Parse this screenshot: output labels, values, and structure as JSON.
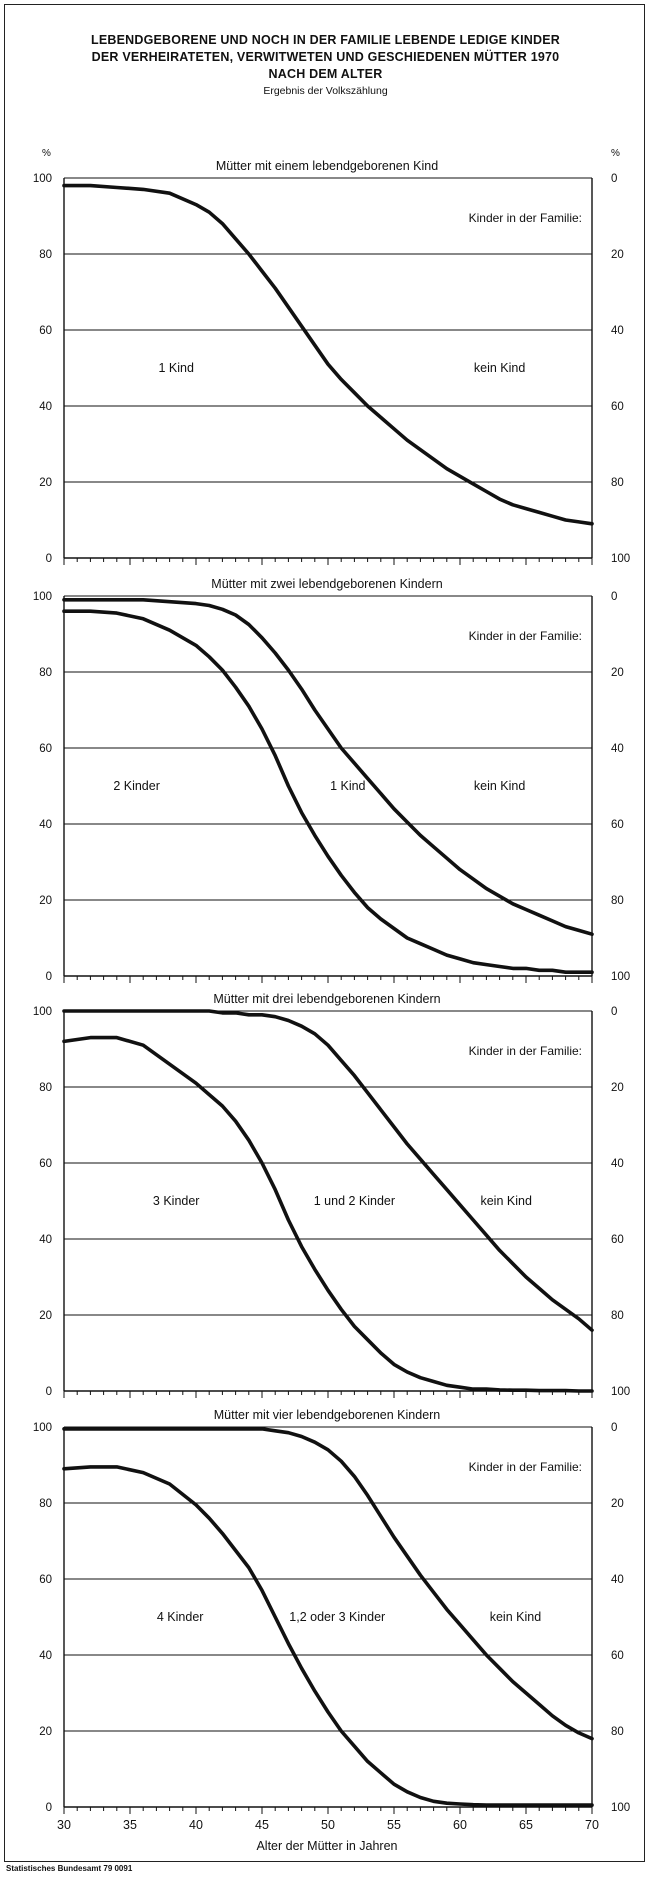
{
  "header": {
    "title_line1": "LEBENDGEBORENE UND NOCH IN DER FAMILIE LEBENDE LEDIGE KINDER",
    "title_line2": "DER VERHEIRATETEN, VERWITWETEN UND GESCHIEDENEN MÜTTER 1970",
    "title_line3": "NACH DEM ALTER",
    "subtitle": "Ergebnis der Volkszählung"
  },
  "source": "Statistisches Bundesamt 79 0091",
  "chart_data": {
    "type": "line",
    "x_axis": {
      "label": "Alter der Mütter in Jahren",
      "range": [
        30,
        70
      ],
      "ticks": [
        30,
        35,
        40,
        45,
        50,
        55,
        60,
        65,
        70
      ],
      "minor_step": 1
    },
    "y_left": {
      "unit": "%",
      "range": [
        0,
        100
      ],
      "ticks": [
        0,
        20,
        40,
        60,
        80,
        100
      ]
    },
    "y_right": {
      "unit": "%",
      "range": [
        100,
        0
      ],
      "ticks": [
        0,
        20,
        40,
        60,
        80,
        100
      ]
    },
    "grid": "horizontal",
    "panels": [
      {
        "title": "Mütter mit einem lebendgeborenen Kind",
        "legend_title": "Kinder in der Familie:",
        "region_labels": [
          {
            "text": "1 Kind",
            "x": 38.5,
            "y": 50
          },
          {
            "text": "kein Kind",
            "x": 63,
            "y": 50
          }
        ],
        "x": [
          30,
          32,
          34,
          36,
          38,
          40,
          41,
          42,
          43,
          44,
          45,
          46,
          47,
          48,
          49,
          50,
          51,
          52,
          53,
          54,
          55,
          56,
          57,
          58,
          59,
          60,
          61,
          62,
          63,
          64,
          65,
          66,
          67,
          68,
          69,
          70
        ],
        "series": [
          {
            "values": [
              98,
              98,
              97.5,
              97,
              96,
              93,
              91,
              88,
              84,
              80,
              75.5,
              71,
              66,
              61,
              56,
              51,
              47,
              43.5,
              40,
              37,
              34,
              31,
              28.5,
              26,
              23.5,
              21.5,
              19.5,
              17.5,
              15.5,
              14,
              13,
              12,
              11,
              10,
              9.5,
              9
            ]
          }
        ]
      },
      {
        "title": "Mütter mit zwei lebendgeborenen Kindern",
        "legend_title": "Kinder in der Familie:",
        "region_labels": [
          {
            "text": "2 Kinder",
            "x": 35.5,
            "y": 50
          },
          {
            "text": "1 Kind",
            "x": 51.5,
            "y": 50
          },
          {
            "text": "kein Kind",
            "x": 63,
            "y": 50
          }
        ],
        "x": [
          30,
          32,
          34,
          36,
          38,
          40,
          41,
          42,
          43,
          44,
          45,
          46,
          47,
          48,
          49,
          50,
          51,
          52,
          53,
          54,
          55,
          56,
          57,
          58,
          59,
          60,
          61,
          62,
          63,
          64,
          65,
          66,
          67,
          68,
          69,
          70
        ],
        "series": [
          {
            "values": [
              96,
              96,
              95.5,
              94,
              91,
              87,
              84,
              80.5,
              76,
              71,
              65,
              58,
              50,
              43,
              37,
              31.5,
              26.5,
              22,
              18,
              15,
              12.5,
              10,
              8.5,
              7,
              5.5,
              4.5,
              3.5,
              3,
              2.5,
              2,
              2,
              1.5,
              1.5,
              1,
              1,
              1
            ]
          },
          {
            "values": [
              99,
              99,
              99,
              99,
              98.5,
              98,
              97.5,
              96.5,
              95,
              92.5,
              89,
              85,
              80.5,
              75.5,
              70,
              65,
              60,
              56,
              52,
              48,
              44,
              40.5,
              37,
              34,
              31,
              28,
              25.5,
              23,
              21,
              19,
              17.5,
              16,
              14.5,
              13,
              12,
              11
            ]
          }
        ]
      },
      {
        "title": "Mütter mit drei lebendgeborenen Kindern",
        "legend_title": "Kinder in der Familie:",
        "region_labels": [
          {
            "text": "3 Kinder",
            "x": 38.5,
            "y": 50
          },
          {
            "text": "1 und 2 Kinder",
            "x": 52,
            "y": 50
          },
          {
            "text": "kein Kind",
            "x": 63.5,
            "y": 50
          }
        ],
        "x": [
          30,
          32,
          34,
          36,
          38,
          40,
          41,
          42,
          43,
          44,
          45,
          46,
          47,
          48,
          49,
          50,
          51,
          52,
          53,
          54,
          55,
          56,
          57,
          58,
          59,
          60,
          61,
          62,
          63,
          64,
          65,
          66,
          67,
          68,
          69,
          70
        ],
        "series": [
          {
            "values": [
              92,
              93,
              93,
              91,
              86,
              81,
              78,
              75,
              71,
              66,
              60,
              53,
              45,
              38,
              32,
              26.5,
              21.5,
              17,
              13.5,
              10,
              7,
              5,
              3.5,
              2.5,
              1.5,
              1,
              0.5,
              0.5,
              0.3,
              0.2,
              0.2,
              0.1,
              0.1,
              0.1,
              0,
              0
            ]
          },
          {
            "values": [
              100,
              100,
              100,
              100,
              100,
              100,
              100,
              99.5,
              99.5,
              99,
              99,
              98.5,
              97.5,
              96,
              94,
              91,
              87,
              83,
              78.5,
              74,
              69.5,
              65,
              61,
              57,
              53,
              49,
              45,
              41,
              37,
              33.5,
              30,
              27,
              24,
              21.5,
              19,
              16
            ]
          }
        ]
      },
      {
        "title": "Mütter mit vier lebendgeborenen Kindern",
        "legend_title": "Kinder in der Familie:",
        "region_labels": [
          {
            "text": "4 Kinder",
            "x": 38.8,
            "y": 50
          },
          {
            "text": "1,2 oder 3 Kinder",
            "x": 50.7,
            "y": 50
          },
          {
            "text": "kein Kind",
            "x": 64.2,
            "y": 50
          }
        ],
        "x": [
          30,
          32,
          34,
          36,
          38,
          40,
          41,
          42,
          43,
          44,
          45,
          46,
          47,
          48,
          49,
          50,
          51,
          52,
          53,
          54,
          55,
          56,
          57,
          58,
          59,
          60,
          61,
          62,
          63,
          64,
          65,
          66,
          67,
          68,
          69,
          70
        ],
        "series": [
          {
            "values": [
              89,
              89.5,
              89.5,
              88,
              85,
              79.5,
              76,
              72,
              67.5,
              63,
              57,
              50,
              43,
              36.5,
              30.5,
              25,
              20,
              16,
              12,
              9,
              6,
              4,
              2.5,
              1.5,
              1,
              0.8,
              0.6,
              0.5,
              0.5,
              0.5,
              0.5,
              0.5,
              0.5,
              0.5,
              0.5,
              0.5
            ]
          },
          {
            "values": [
              99.5,
              99.5,
              99.5,
              99.5,
              99.5,
              99.5,
              99.5,
              99.5,
              99.5,
              99.5,
              99.5,
              99,
              98.5,
              97.5,
              96,
              94,
              91,
              87,
              82,
              76.5,
              71,
              66,
              61,
              56.5,
              52,
              48,
              44,
              40,
              36.5,
              33,
              30,
              27,
              24,
              21.5,
              19.5,
              18
            ]
          }
        ]
      }
    ]
  }
}
